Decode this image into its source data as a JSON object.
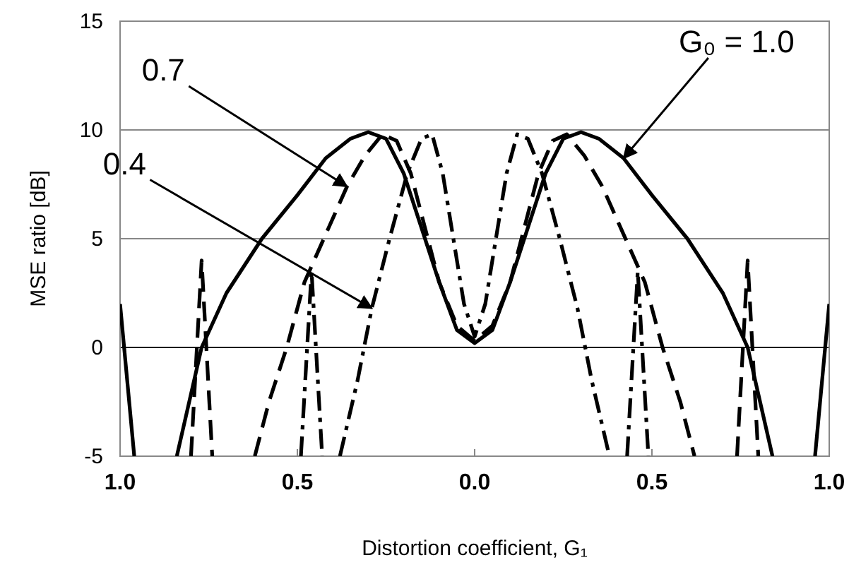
{
  "chart_data": {
    "type": "line",
    "xlabel": "Distortion coefficient, G₁",
    "ylabel": "MSE ratio [dB]",
    "xlim": [
      -1,
      1
    ],
    "xticks": [
      {
        "value": -1,
        "label": "1.0"
      },
      {
        "value": -0.5,
        "label": "0.5"
      },
      {
        "value": 0,
        "label": "0.0"
      },
      {
        "value": 0.5,
        "label": "0.5"
      },
      {
        "value": 1,
        "label": "1.0"
      }
    ],
    "ylim": [
      -5,
      15
    ],
    "yticks": [
      -5,
      0,
      5,
      10,
      15
    ],
    "grid": "y",
    "marker": "none",
    "series": [
      {
        "color": "#000000",
        "line_style": "solid",
        "x": [
          -1,
          -0.96,
          -0.9,
          -0.84,
          -0.77,
          -0.7,
          -0.6,
          -0.5,
          -0.42,
          -0.35,
          -0.3,
          -0.25,
          -0.2,
          -0.15,
          -0.1,
          -0.05,
          0,
          0.05,
          0.1,
          0.15,
          0.2,
          0.25,
          0.3,
          0.35,
          0.42,
          0.5,
          0.6,
          0.7,
          0.77,
          0.84,
          0.9,
          0.96,
          1
        ],
        "values": [
          2,
          -5,
          null,
          -5,
          0,
          2.5,
          5,
          7,
          8.7,
          9.6,
          9.9,
          9.6,
          8,
          5.5,
          3,
          0.8,
          0.2,
          0.8,
          3,
          5.5,
          8,
          9.6,
          9.9,
          9.6,
          8.7,
          7,
          5,
          2.5,
          0,
          -5,
          null,
          -5,
          2
        ]
      },
      {
        "color": "#000000",
        "line_style": "dashed",
        "x": [
          -0.8,
          -0.77,
          -0.74,
          -0.68,
          -0.62,
          -0.58,
          -0.53,
          -0.48,
          -0.42,
          -0.36,
          -0.31,
          -0.26,
          -0.22,
          -0.18,
          -0.14,
          -0.1,
          -0.05,
          0,
          0.05,
          0.1,
          0.14,
          0.18,
          0.22,
          0.26,
          0.31,
          0.36,
          0.42,
          0.48,
          0.53,
          0.58,
          0.62,
          0.68,
          0.74,
          0.77,
          0.8
        ],
        "values": [
          -5,
          4,
          -5,
          null,
          -5,
          -2.5,
          0,
          3,
          5.2,
          7.4,
          8.8,
          9.8,
          9.5,
          8,
          5.5,
          3,
          1,
          0.3,
          1,
          3,
          5.5,
          8,
          9.5,
          9.8,
          8.8,
          7.4,
          5.2,
          3,
          0,
          -2.5,
          -5,
          null,
          -5,
          4,
          -5
        ]
      },
      {
        "color": "#000000",
        "line_style": "dashdot",
        "x": [
          -0.49,
          -0.46,
          -0.43,
          -0.4,
          -0.38,
          -0.33,
          -0.29,
          -0.24,
          -0.19,
          -0.15,
          -0.12,
          -0.09,
          -0.06,
          -0.03,
          0,
          0.03,
          0.06,
          0.09,
          0.12,
          0.15,
          0.19,
          0.24,
          0.29,
          0.33,
          0.38,
          0.4,
          0.43,
          0.46,
          0.49
        ],
        "values": [
          -5,
          3.5,
          -5,
          null,
          -5,
          -1.5,
          1.8,
          5,
          8,
          9.6,
          9.8,
          8,
          5,
          2,
          0.5,
          2,
          5,
          8,
          9.8,
          9.6,
          8,
          5,
          1.8,
          -1.5,
          -5,
          null,
          -5,
          3.5,
          -5
        ]
      }
    ],
    "annotations": [
      {
        "text": "0.7",
        "x": -0.36,
        "y": 7.4
      },
      {
        "text": "0.4",
        "x": -0.29,
        "y": 1.8
      },
      {
        "text": "G₀ = 1.0",
        "x": 0.42,
        "y": 8.7
      }
    ]
  }
}
